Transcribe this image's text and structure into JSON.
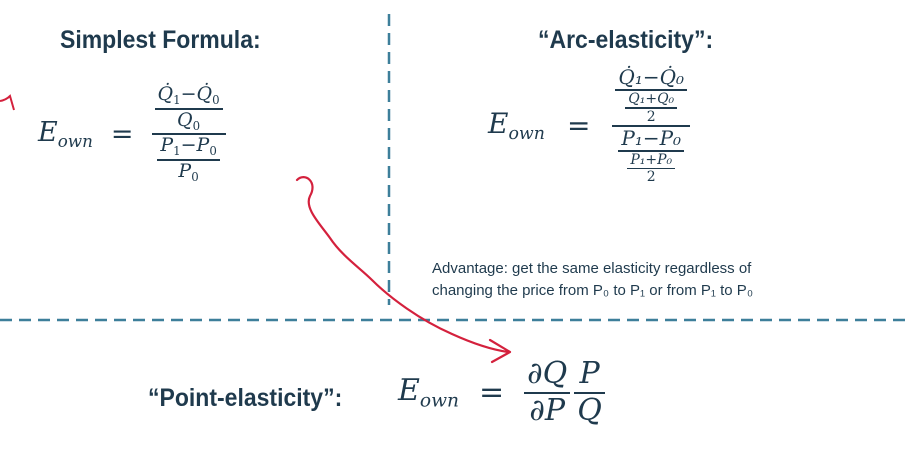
{
  "simplest": {
    "heading": "Simplest Formula:",
    "lhs_base": "E",
    "lhs_sub": "own",
    "equals": "=",
    "q1": "Q̇",
    "q1_sub": "1",
    "minus": "−",
    "q0": "Q̇",
    "q0_sub": "0",
    "qden": "Q",
    "qden_sub": "0",
    "p1": "P",
    "p1_sub": "1",
    "p0": "P",
    "p0_sub": "0",
    "pden": "P",
    "pden_sub": "0"
  },
  "arc": {
    "heading": "“Arc-elasticity”:",
    "lhs_base": "E",
    "lhs_sub": "own",
    "equals": "=",
    "q_num": "Q̇₁−Q̇₀",
    "q_sum": "Q₁+Q₀",
    "two": "2",
    "p_num": "P₁−P₀",
    "p_sum": "P₁+P₀",
    "advantage_line1": "Advantage: get the same elasticity regardless of",
    "advantage_line2": "changing the price from P₀ to P₁ or from P₁ to P₀"
  },
  "point": {
    "heading": "“Point-elasticity”:",
    "lhs_base": "E",
    "lhs_sub": "own",
    "equals": "=",
    "dq": "∂Q",
    "dp": "∂P",
    "p": "P",
    "q": "Q"
  },
  "colors": {
    "text": "#1f3a4d",
    "divider": "#3d7f9a",
    "annotation": "#d4213d"
  }
}
